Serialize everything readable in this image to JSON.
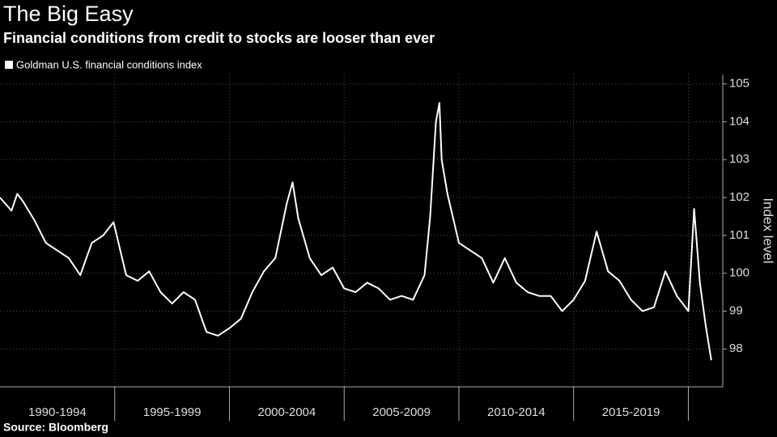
{
  "chart_data": {
    "type": "line",
    "title": "The Big Easy",
    "subtitle": "Financial conditions from credit to stocks are looser than ever",
    "source": "Source: Bloomberg",
    "y_axis_label": "Index level",
    "categories": [
      "1990-1994",
      "1995-1999",
      "2000-2004",
      "2005-2009",
      "2010-2014",
      "2015-2019"
    ],
    "xlim": [
      1990,
      2021.5
    ],
    "xticks": [
      1995,
      2000,
      2005,
      2010,
      2015,
      2020
    ],
    "ylim": [
      97,
      105.25
    ],
    "yticks": [
      98,
      99,
      100,
      101,
      102,
      103,
      104,
      105
    ],
    "grid": true,
    "legend": "top-left",
    "x": [
      1990,
      1990.5,
      1990.75,
      1991,
      1991.5,
      1992,
      1992.5,
      1993,
      1993.5,
      1994,
      1994.5,
      1994.95,
      1995.5,
      1996,
      1996.5,
      1997,
      1997.5,
      1998,
      1998.5,
      1999,
      1999.5,
      2000,
      2000.5,
      2001,
      2001.5,
      2002,
      2002.5,
      2002.75,
      2003,
      2003.5,
      2004,
      2004.5,
      2005,
      2005.5,
      2006,
      2006.5,
      2007,
      2007.5,
      2008,
      2008.5,
      2008.75,
      2009,
      2009.15,
      2009.25,
      2009.5,
      2010,
      2010.5,
      2011,
      2011.5,
      2012,
      2012.5,
      2013,
      2013.5,
      2014,
      2014.5,
      2015,
      2015.5,
      2016,
      2016.5,
      2017,
      2017.5,
      2018,
      2018.5,
      2019,
      2019.5,
      2020,
      2020.25,
      2020.5,
      2020.75,
      2021
    ],
    "series": [
      {
        "name": "Goldman U.S. financial conditions index",
        "color": "#ffffff",
        "values": [
          102.0,
          101.65,
          102.1,
          101.9,
          101.4,
          100.8,
          100.6,
          100.4,
          99.95,
          100.8,
          101.0,
          101.35,
          99.95,
          99.8,
          100.05,
          99.5,
          99.2,
          99.5,
          99.3,
          98.45,
          98.35,
          98.55,
          98.8,
          99.5,
          100.05,
          100.4,
          101.85,
          102.4,
          101.45,
          100.4,
          99.95,
          100.15,
          99.6,
          99.5,
          99.75,
          99.6,
          99.3,
          99.4,
          99.3,
          99.95,
          101.5,
          104.0,
          104.5,
          103.0,
          102.1,
          100.8,
          100.6,
          100.4,
          99.75,
          100.4,
          99.75,
          99.5,
          99.4,
          99.4,
          99.0,
          99.3,
          99.8,
          101.1,
          100.05,
          99.8,
          99.3,
          99.0,
          99.1,
          100.05,
          99.4,
          99.0,
          101.7,
          99.75,
          98.65,
          97.7
        ]
      }
    ]
  }
}
